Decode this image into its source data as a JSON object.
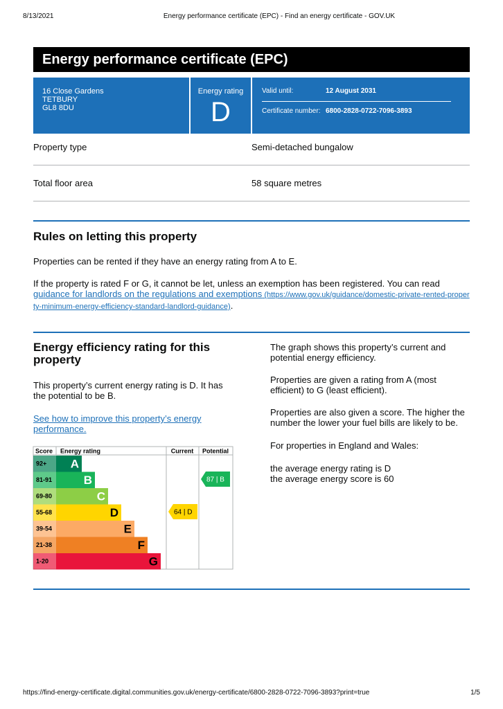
{
  "browser": {
    "date": "8/13/2021",
    "title": "Energy performance certificate (EPC) - Find an energy certificate - GOV.UK",
    "url": "https://find-energy-certificate.digital.communities.gov.uk/energy-certificate/6800-2828-0722-7096-3893?print=true",
    "page": "1/5"
  },
  "header": {
    "title": "Energy performance certificate (EPC)",
    "address": [
      "16 Close Gardens",
      "TETBURY",
      "GL8 8DU"
    ],
    "rating_label": "Energy rating",
    "rating": "D",
    "valid_label": "Valid until:",
    "valid": "12 August 2031",
    "cert_label": "Certificate number:",
    "cert": "6800-2828-0722-7096-3893"
  },
  "summary": [
    [
      "Property type",
      "Semi-detached bungalow"
    ],
    [
      "Total floor area",
      "58 square metres"
    ]
  ],
  "rules": {
    "heading": "Rules on letting this property",
    "p1": "Properties can be rented if they have an energy rating from A to E.",
    "p2": "If the property is rated F or G, it cannot be let, unless an exemption has been registered. You can read ",
    "link": "guidance for landlords on the regulations and exemptions",
    "url": " (https://www.gov.uk/guidance/domestic-private-rented-property-minimum-energy-efficiency-standard-landlord-guidance)",
    "end": "."
  },
  "efficiency": {
    "heading": "Energy efficiency rating for this property",
    "p1": "This property’s current energy rating is D. It has the potential to be B.",
    "link": "See how to improve this property’s energy performance.",
    "table": {
      "headers": [
        "Score",
        "Energy rating",
        "Current",
        "Potential"
      ],
      "bands": [
        {
          "score": "92+",
          "rating": "A",
          "color": "#008054"
        },
        {
          "score": "81-91",
          "rating": "B",
          "color": "#19b459"
        },
        {
          "score": "69-80",
          "rating": "C",
          "color": "#8dce46"
        },
        {
          "score": "55-68",
          "rating": "D",
          "color": "#ffd500"
        },
        {
          "score": "39-54",
          "rating": "E",
          "color": "#fcaa65"
        },
        {
          "score": "21-38",
          "rating": "F",
          "color": "#ef8023"
        },
        {
          "score": "1-20",
          "rating": "G",
          "color": "#e9153b"
        }
      ],
      "current": "64 | D",
      "current_color": "#ffd500",
      "potential": "87 | B",
      "potential_color": "#19b459"
    },
    "right": [
      "The graph shows this property’s current and potential energy efficiency.",
      "Properties are given a rating from A (most efficient) to G (least efficient).",
      "Properties are also given a score. The higher the number the lower your fuel bills are likely to be.",
      "For properties in England and Wales:"
    ],
    "averages": [
      "the average energy rating is D",
      "the average energy score is 60"
    ]
  }
}
